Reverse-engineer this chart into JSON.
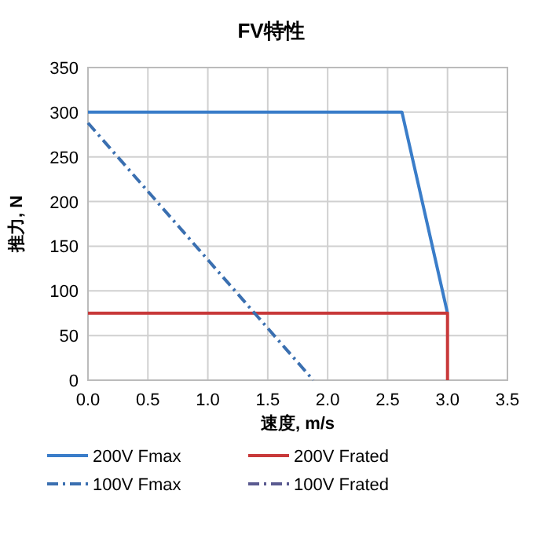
{
  "chart_data": {
    "type": "line",
    "title": "FV特性",
    "xlabel": "速度, m/s",
    "ylabel": "推力, N",
    "xlim": [
      0,
      3.5
    ],
    "xticks": [
      {
        "value": 0,
        "label": "0.0"
      },
      {
        "value": 0.5,
        "label": "0.5"
      },
      {
        "value": 1,
        "label": "1.0"
      },
      {
        "value": 1.5,
        "label": "1.5"
      },
      {
        "value": 2,
        "label": "2.0"
      },
      {
        "value": 2.5,
        "label": "2.5"
      },
      {
        "value": 3,
        "label": "3.0"
      },
      {
        "value": 3.5,
        "label": "3.5"
      }
    ],
    "ylim": [
      0,
      350
    ],
    "yticks": [
      0,
      50,
      100,
      150,
      200,
      250,
      300,
      350
    ],
    "grid": true,
    "legend": "bottom",
    "marker": "none",
    "series": [
      {
        "name": "200V Fmax",
        "color": "#3a7dc9",
        "x": [
          0,
          2.62,
          3.0
        ],
        "values": [
          300,
          300,
          75
        ],
        "line_style": "solid"
      },
      {
        "name": "200V Frated",
        "color": "#c8393a",
        "x": [
          0,
          3.0,
          3.0
        ],
        "values": [
          75,
          75,
          0
        ],
        "line_style": "solid"
      },
      {
        "name": "100V Fmax",
        "color": "#3a6fb0",
        "x": [
          0,
          1.88
        ],
        "values": [
          288,
          0
        ],
        "line_style": "dashdot"
      },
      {
        "name": "100V Frated",
        "color": "#5a5a90",
        "line_style": "dashdot"
      }
    ]
  }
}
